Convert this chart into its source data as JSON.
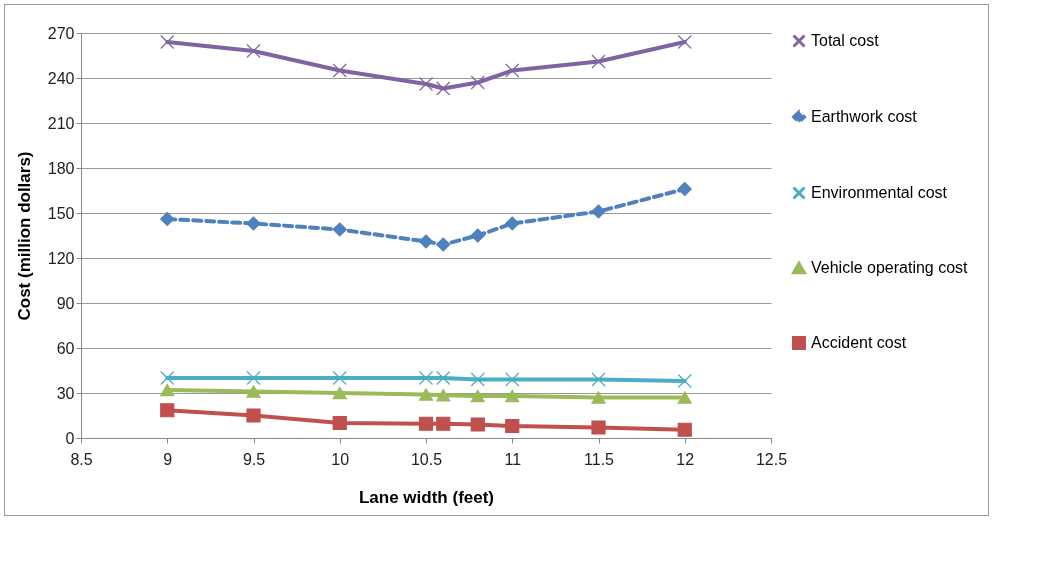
{
  "chart_data": {
    "type": "line",
    "xlabel": "Lane width (feet)",
    "ylabel": "Cost (million dollars)",
    "x": [
      9,
      9.5,
      10,
      10.5,
      10.6,
      10.8,
      11,
      11.5,
      12
    ],
    "xlim": [
      8.5,
      12.5
    ],
    "xticks": [
      8.5,
      9,
      9.5,
      10,
      10.5,
      11,
      11.5,
      12,
      12.5
    ],
    "ylim": [
      0,
      270
    ],
    "yticks": [
      0,
      30,
      60,
      90,
      120,
      150,
      180,
      210,
      240,
      270
    ],
    "grid": "y",
    "legend": "right",
    "series": [
      {
        "name": "Total cost",
        "color": "#8064a2",
        "marker": "cross",
        "line_style": "solid",
        "values": [
          264,
          258,
          245,
          236,
          233,
          237,
          245,
          251,
          264
        ]
      },
      {
        "name": "Earthwork cost",
        "color": "#4f81bd",
        "marker": "diamond",
        "line_style": "dashed",
        "values": [
          146,
          143,
          139,
          131,
          129,
          135,
          143,
          151,
          166
        ]
      },
      {
        "name": "Environmental cost",
        "color": "#4bacc6",
        "marker": "cross",
        "line_style": "solid",
        "values": [
          40,
          40,
          40,
          40,
          40,
          39,
          39,
          39,
          38
        ]
      },
      {
        "name": "Vehicle operating cost",
        "color": "#9bbb59",
        "marker": "triangle",
        "line_style": "solid",
        "values": [
          32,
          31,
          30,
          29,
          28.5,
          28,
          28,
          27,
          27
        ]
      },
      {
        "name": "Accident cost",
        "color": "#c0504d",
        "marker": "square",
        "line_style": "solid",
        "values": [
          18.5,
          15,
          10,
          9.5,
          9.5,
          9,
          8,
          7,
          5.5
        ]
      }
    ]
  }
}
